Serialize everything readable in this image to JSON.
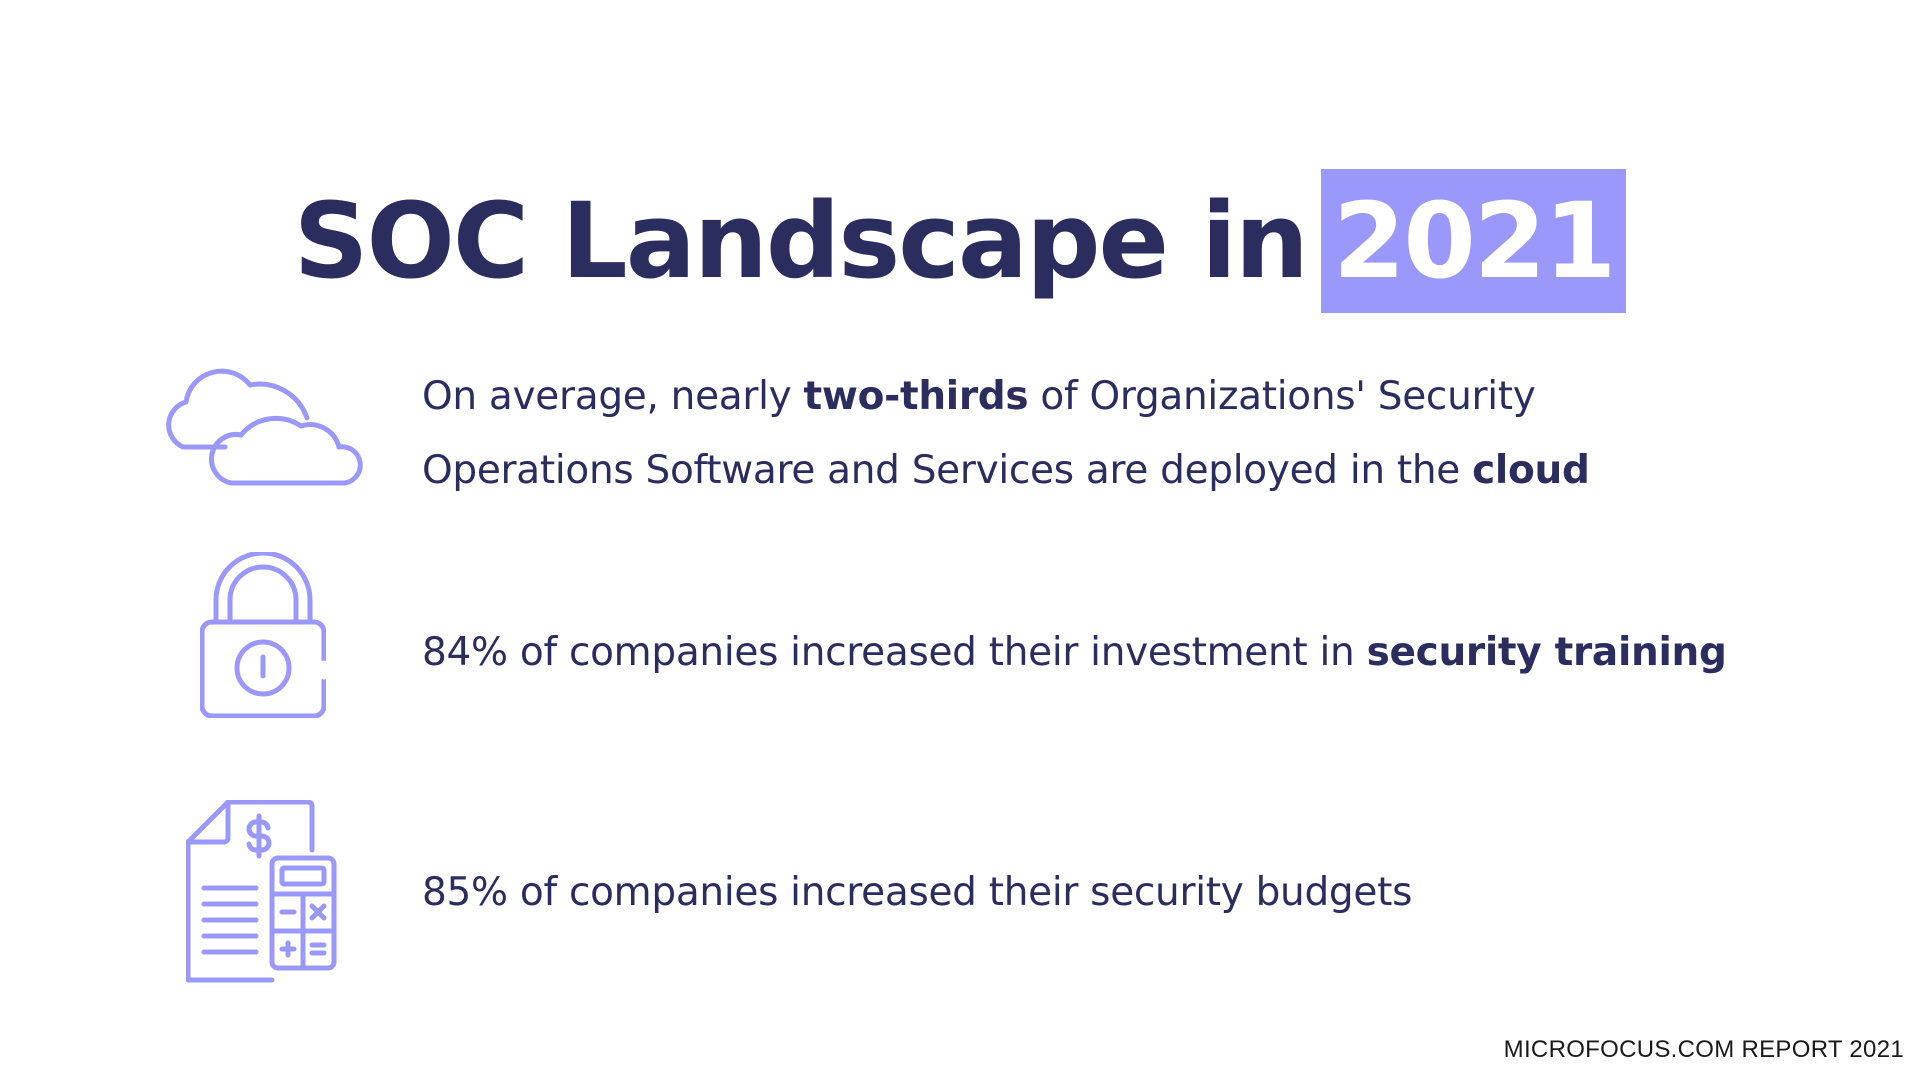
{
  "title": {
    "prefix": "SOC Landscape in",
    "highlight": "2021"
  },
  "colors": {
    "navy": "#2b2d5e",
    "accent": "#9a98fb"
  },
  "stats": [
    {
      "icon": "cloud-icon",
      "line1": {
        "a": "On average, nearly ",
        "b": "two-thirds",
        "c": " of Organizations' Security"
      },
      "line2": {
        "a": "Operations Software and Services are deployed in the ",
        "b": "cloud"
      }
    },
    {
      "icon": "padlock-icon",
      "a": "84% of companies increased their investment in ",
      "b": "security training"
    },
    {
      "icon": "budget-calculator-icon",
      "text": "85% of companies increased their security budgets"
    }
  ],
  "footer": "MICROFOCUS.COM REPORT 2021"
}
